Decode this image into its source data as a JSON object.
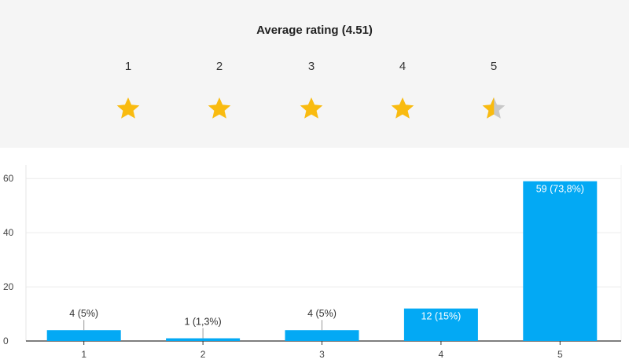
{
  "rating": {
    "title": "Average rating (4.51)",
    "average": 4.51,
    "stars": [
      "1",
      "2",
      "3",
      "4",
      "5"
    ],
    "star_color": "#f9bb10",
    "empty_star_color": "#c8c8c8"
  },
  "chart_data": {
    "type": "bar",
    "categories": [
      "1",
      "2",
      "3",
      "4",
      "5"
    ],
    "values": [
      4,
      1,
      4,
      12,
      59
    ],
    "data_labels": [
      "4 (5%)",
      "1 (1,3%)",
      "4 (5%)",
      "12 (15%)",
      "59 (73,8%)"
    ],
    "yticks": [
      "0",
      "20",
      "40",
      "60"
    ],
    "ylim": [
      0,
      65
    ],
    "grid": true,
    "bar_color": "#03a9f4",
    "title": "",
    "xlabel": "",
    "ylabel": ""
  }
}
